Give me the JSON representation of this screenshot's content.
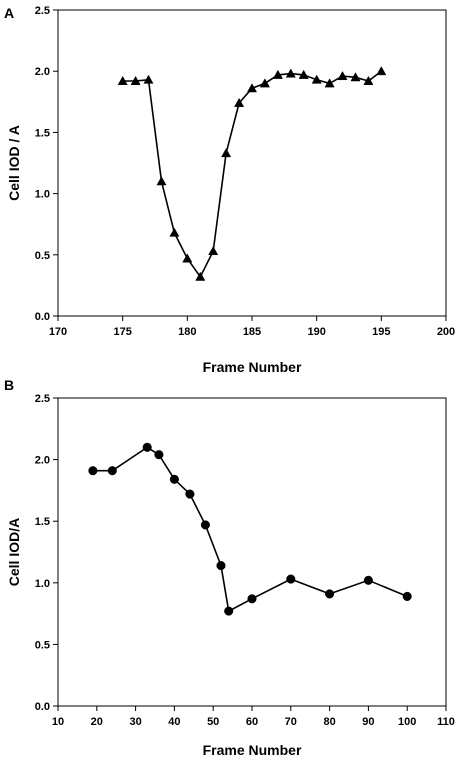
{
  "chart_data": [
    {
      "panel": "A",
      "type": "line",
      "marker": "triangle",
      "xlabel": "Frame Number",
      "ylabel": "Cell IOD / A",
      "xlim": [
        170,
        200
      ],
      "ylim": [
        0,
        2.5
      ],
      "xticks": [
        "170",
        "175",
        "180",
        "185",
        "190",
        "195",
        "200"
      ],
      "yticks": [
        "0.0",
        "0.5",
        "1.0",
        "1.5",
        "2.0",
        "2.5"
      ],
      "grid": false,
      "series": [
        {
          "x": [
            175,
            176,
            177,
            178,
            179,
            180,
            181,
            182,
            183,
            184,
            185,
            186,
            187,
            188,
            189,
            190,
            191,
            192,
            193,
            194,
            195
          ],
          "y": [
            1.92,
            1.92,
            1.93,
            1.1,
            0.68,
            0.47,
            0.32,
            0.53,
            1.33,
            1.74,
            1.86,
            1.9,
            1.97,
            1.98,
            1.97,
            1.93,
            1.9,
            1.96,
            1.95,
            1.92,
            2.0
          ]
        }
      ]
    },
    {
      "panel": "B",
      "type": "line",
      "marker": "circle",
      "xlabel": "Frame Number",
      "ylabel": "Cell IOD/A",
      "xlim": [
        10,
        110
      ],
      "ylim": [
        0,
        2.5
      ],
      "xticks": [
        "10",
        "20",
        "30",
        "40",
        "50",
        "60",
        "70",
        "80",
        "90",
        "100",
        "110"
      ],
      "yticks": [
        "0.0",
        "0.5",
        "1.0",
        "1.5",
        "2.0",
        "2.5"
      ],
      "grid": false,
      "series": [
        {
          "x": [
            19,
            24,
            33,
            36,
            40,
            44,
            48,
            52,
            54,
            60,
            70,
            80,
            90,
            100
          ],
          "y": [
            1.91,
            1.91,
            2.1,
            2.04,
            1.84,
            1.72,
            1.47,
            1.14,
            0.77,
            0.87,
            1.03,
            0.91,
            1.02,
            0.89
          ]
        }
      ]
    }
  ]
}
